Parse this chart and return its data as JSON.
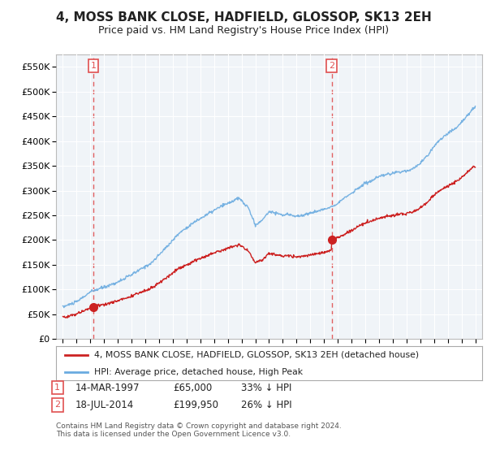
{
  "title": "4, MOSS BANK CLOSE, HADFIELD, GLOSSOP, SK13 2EH",
  "subtitle": "Price paid vs. HM Land Registry's House Price Index (HPI)",
  "sale1_label": "14-MAR-1997",
  "sale1_price": 65000,
  "sale1_price_str": "£65,000",
  "sale1_pct": "33% ↓ HPI",
  "sale1_year": 1997.2,
  "sale2_label": "18-JUL-2014",
  "sale2_price": 199950,
  "sale2_price_str": "£199,950",
  "sale2_pct": "26% ↓ HPI",
  "sale2_year": 2014.55,
  "legend_property": "4, MOSS BANK CLOSE, HADFIELD, GLOSSOP, SK13 2EH (detached house)",
  "legend_hpi": "HPI: Average price, detached house, High Peak",
  "footnote1": "Contains HM Land Registry data © Crown copyright and database right 2024.",
  "footnote2": "This data is licensed under the Open Government Licence v3.0.",
  "hpi_color": "#6aabe0",
  "property_color": "#cc2222",
  "dashed_line_color": "#e05050",
  "bg_color": "#ffffff",
  "plot_bg_color": "#f0f4f8",
  "ylim_max": 575000,
  "ylim_min": 0,
  "xmin": 1994.5,
  "xmax": 2025.5
}
